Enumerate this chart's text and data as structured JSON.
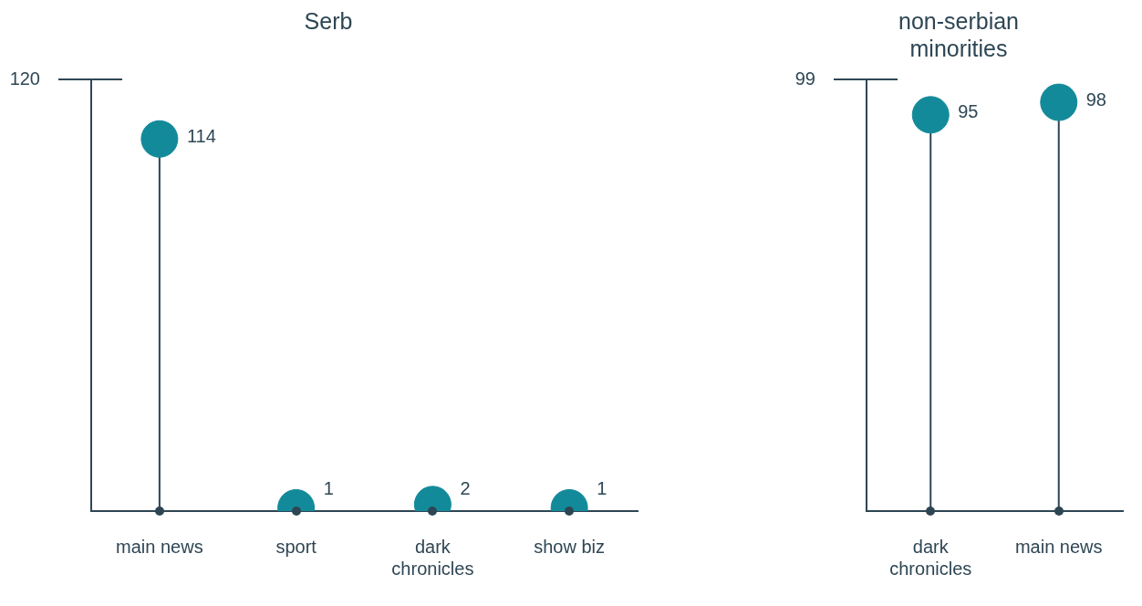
{
  "chart_data": [
    {
      "type": "lollipop",
      "title": "Serb",
      "categories": [
        "main news",
        "sport",
        "dark chronicles",
        "show biz"
      ],
      "series": [
        {
          "color": "#138a9a",
          "values": [
            114,
            1,
            2,
            1
          ]
        }
      ],
      "data_labels": true,
      "annotations": [
        "120"
      ]
    },
    {
      "type": "lollipop",
      "title": "non-serbian minorities",
      "categories": [
        "dark chronicles",
        "main news"
      ],
      "series": [
        {
          "color": "#138a9a",
          "values": [
            95,
            98
          ]
        }
      ],
      "data_labels": true,
      "annotations": [
        "99"
      ]
    }
  ]
}
